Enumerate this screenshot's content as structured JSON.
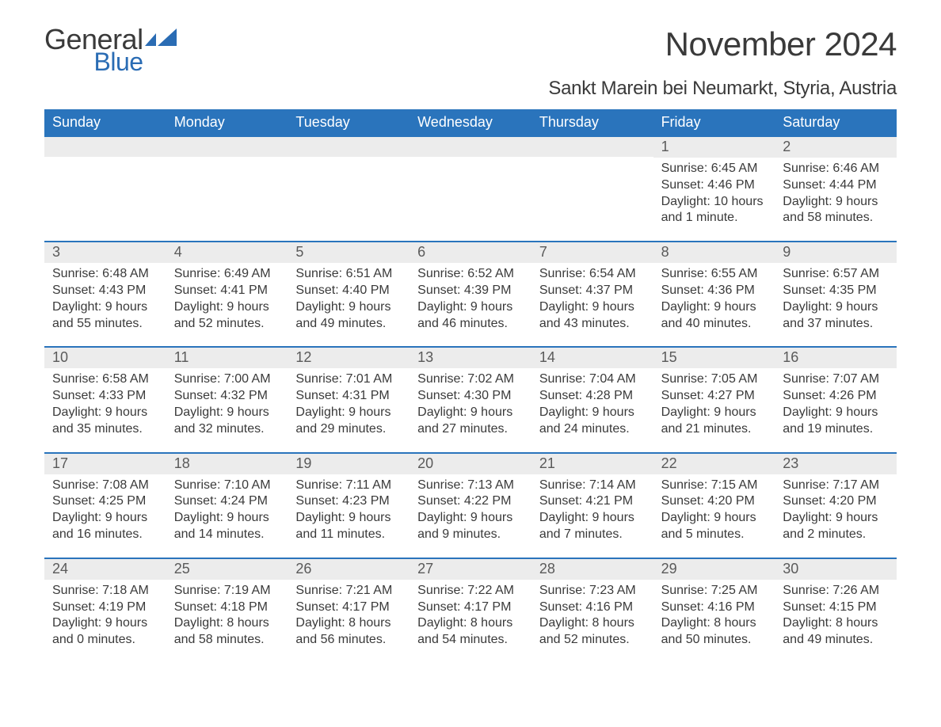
{
  "brand": {
    "word1": "General",
    "word2": "Blue",
    "accent_color": "#2a6cb4"
  },
  "title": "November 2024",
  "location": "Sankt Marein bei Neumarkt, Styria, Austria",
  "colors": {
    "header_bg": "#2a74bc",
    "header_text": "#ffffff",
    "row_divider": "#2a74bc",
    "daynum_bg": "#ececec",
    "body_text": "#3a3a3a",
    "page_bg": "#ffffff"
  },
  "typography": {
    "title_fontsize": 42,
    "location_fontsize": 24,
    "header_fontsize": 18,
    "body_fontsize": 16
  },
  "day_headers": [
    "Sunday",
    "Monday",
    "Tuesday",
    "Wednesday",
    "Thursday",
    "Friday",
    "Saturday"
  ],
  "weeks": [
    [
      null,
      null,
      null,
      null,
      null,
      {
        "n": "1",
        "sunrise": "Sunrise: 6:45 AM",
        "sunset": "Sunset: 4:46 PM",
        "day1": "Daylight: 10 hours",
        "day2": "and 1 minute."
      },
      {
        "n": "2",
        "sunrise": "Sunrise: 6:46 AM",
        "sunset": "Sunset: 4:44 PM",
        "day1": "Daylight: 9 hours",
        "day2": "and 58 minutes."
      }
    ],
    [
      {
        "n": "3",
        "sunrise": "Sunrise: 6:48 AM",
        "sunset": "Sunset: 4:43 PM",
        "day1": "Daylight: 9 hours",
        "day2": "and 55 minutes."
      },
      {
        "n": "4",
        "sunrise": "Sunrise: 6:49 AM",
        "sunset": "Sunset: 4:41 PM",
        "day1": "Daylight: 9 hours",
        "day2": "and 52 minutes."
      },
      {
        "n": "5",
        "sunrise": "Sunrise: 6:51 AM",
        "sunset": "Sunset: 4:40 PM",
        "day1": "Daylight: 9 hours",
        "day2": "and 49 minutes."
      },
      {
        "n": "6",
        "sunrise": "Sunrise: 6:52 AM",
        "sunset": "Sunset: 4:39 PM",
        "day1": "Daylight: 9 hours",
        "day2": "and 46 minutes."
      },
      {
        "n": "7",
        "sunrise": "Sunrise: 6:54 AM",
        "sunset": "Sunset: 4:37 PM",
        "day1": "Daylight: 9 hours",
        "day2": "and 43 minutes."
      },
      {
        "n": "8",
        "sunrise": "Sunrise: 6:55 AM",
        "sunset": "Sunset: 4:36 PM",
        "day1": "Daylight: 9 hours",
        "day2": "and 40 minutes."
      },
      {
        "n": "9",
        "sunrise": "Sunrise: 6:57 AM",
        "sunset": "Sunset: 4:35 PM",
        "day1": "Daylight: 9 hours",
        "day2": "and 37 minutes."
      }
    ],
    [
      {
        "n": "10",
        "sunrise": "Sunrise: 6:58 AM",
        "sunset": "Sunset: 4:33 PM",
        "day1": "Daylight: 9 hours",
        "day2": "and 35 minutes."
      },
      {
        "n": "11",
        "sunrise": "Sunrise: 7:00 AM",
        "sunset": "Sunset: 4:32 PM",
        "day1": "Daylight: 9 hours",
        "day2": "and 32 minutes."
      },
      {
        "n": "12",
        "sunrise": "Sunrise: 7:01 AM",
        "sunset": "Sunset: 4:31 PM",
        "day1": "Daylight: 9 hours",
        "day2": "and 29 minutes."
      },
      {
        "n": "13",
        "sunrise": "Sunrise: 7:02 AM",
        "sunset": "Sunset: 4:30 PM",
        "day1": "Daylight: 9 hours",
        "day2": "and 27 minutes."
      },
      {
        "n": "14",
        "sunrise": "Sunrise: 7:04 AM",
        "sunset": "Sunset: 4:28 PM",
        "day1": "Daylight: 9 hours",
        "day2": "and 24 minutes."
      },
      {
        "n": "15",
        "sunrise": "Sunrise: 7:05 AM",
        "sunset": "Sunset: 4:27 PM",
        "day1": "Daylight: 9 hours",
        "day2": "and 21 minutes."
      },
      {
        "n": "16",
        "sunrise": "Sunrise: 7:07 AM",
        "sunset": "Sunset: 4:26 PM",
        "day1": "Daylight: 9 hours",
        "day2": "and 19 minutes."
      }
    ],
    [
      {
        "n": "17",
        "sunrise": "Sunrise: 7:08 AM",
        "sunset": "Sunset: 4:25 PM",
        "day1": "Daylight: 9 hours",
        "day2": "and 16 minutes."
      },
      {
        "n": "18",
        "sunrise": "Sunrise: 7:10 AM",
        "sunset": "Sunset: 4:24 PM",
        "day1": "Daylight: 9 hours",
        "day2": "and 14 minutes."
      },
      {
        "n": "19",
        "sunrise": "Sunrise: 7:11 AM",
        "sunset": "Sunset: 4:23 PM",
        "day1": "Daylight: 9 hours",
        "day2": "and 11 minutes."
      },
      {
        "n": "20",
        "sunrise": "Sunrise: 7:13 AM",
        "sunset": "Sunset: 4:22 PM",
        "day1": "Daylight: 9 hours",
        "day2": "and 9 minutes."
      },
      {
        "n": "21",
        "sunrise": "Sunrise: 7:14 AM",
        "sunset": "Sunset: 4:21 PM",
        "day1": "Daylight: 9 hours",
        "day2": "and 7 minutes."
      },
      {
        "n": "22",
        "sunrise": "Sunrise: 7:15 AM",
        "sunset": "Sunset: 4:20 PM",
        "day1": "Daylight: 9 hours",
        "day2": "and 5 minutes."
      },
      {
        "n": "23",
        "sunrise": "Sunrise: 7:17 AM",
        "sunset": "Sunset: 4:20 PM",
        "day1": "Daylight: 9 hours",
        "day2": "and 2 minutes."
      }
    ],
    [
      {
        "n": "24",
        "sunrise": "Sunrise: 7:18 AM",
        "sunset": "Sunset: 4:19 PM",
        "day1": "Daylight: 9 hours",
        "day2": "and 0 minutes."
      },
      {
        "n": "25",
        "sunrise": "Sunrise: 7:19 AM",
        "sunset": "Sunset: 4:18 PM",
        "day1": "Daylight: 8 hours",
        "day2": "and 58 minutes."
      },
      {
        "n": "26",
        "sunrise": "Sunrise: 7:21 AM",
        "sunset": "Sunset: 4:17 PM",
        "day1": "Daylight: 8 hours",
        "day2": "and 56 minutes."
      },
      {
        "n": "27",
        "sunrise": "Sunrise: 7:22 AM",
        "sunset": "Sunset: 4:17 PM",
        "day1": "Daylight: 8 hours",
        "day2": "and 54 minutes."
      },
      {
        "n": "28",
        "sunrise": "Sunrise: 7:23 AM",
        "sunset": "Sunset: 4:16 PM",
        "day1": "Daylight: 8 hours",
        "day2": "and 52 minutes."
      },
      {
        "n": "29",
        "sunrise": "Sunrise: 7:25 AM",
        "sunset": "Sunset: 4:16 PM",
        "day1": "Daylight: 8 hours",
        "day2": "and 50 minutes."
      },
      {
        "n": "30",
        "sunrise": "Sunrise: 7:26 AM",
        "sunset": "Sunset: 4:15 PM",
        "day1": "Daylight: 8 hours",
        "day2": "and 49 minutes."
      }
    ]
  ]
}
